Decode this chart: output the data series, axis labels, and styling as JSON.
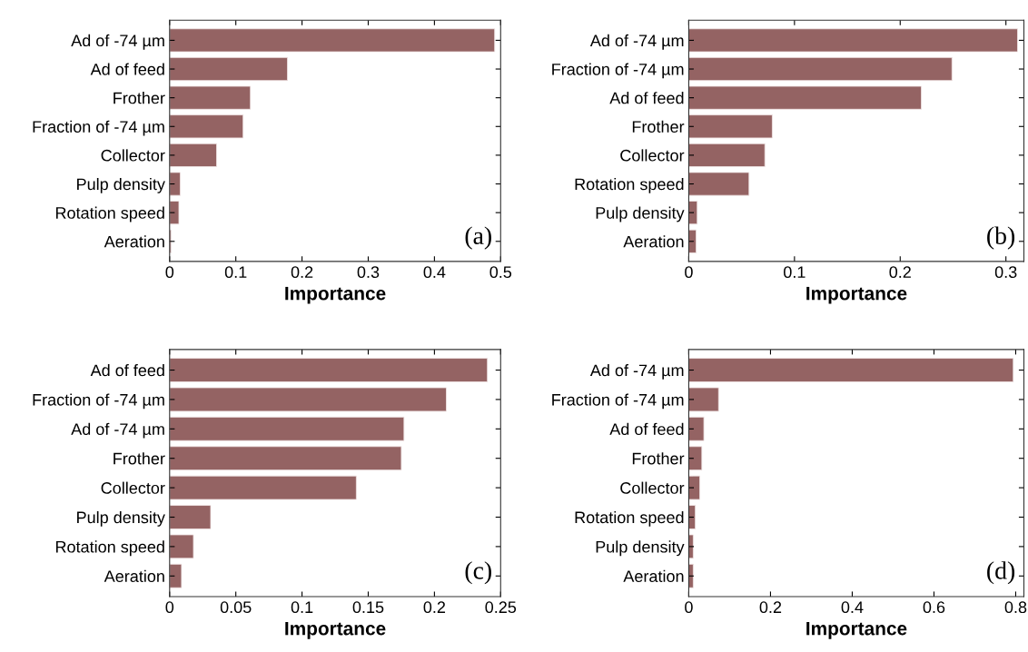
{
  "chart_data": [
    {
      "type": "bar",
      "orientation": "horizontal",
      "xlabel": "Importance",
      "annotations": [
        "(a)"
      ],
      "color": "#946363",
      "categories": [
        "Ad of -74 µm",
        "Ad of feed",
        "Frother",
        "Fraction of -74 µm",
        "Collector",
        "Pulp density",
        "Rotation speed",
        "Aeration"
      ],
      "values": [
        0.491,
        0.178,
        0.122,
        0.111,
        0.071,
        0.016,
        0.014,
        0.002
      ],
      "xlim": [
        0,
        0.5
      ],
      "xticks": [
        0,
        0.1,
        0.2,
        0.3,
        0.4,
        0.5
      ],
      "grid": false,
      "legend": false
    },
    {
      "type": "bar",
      "orientation": "horizontal",
      "xlabel": "Importance",
      "annotations": [
        "(b)"
      ],
      "color": "#946363",
      "categories": [
        "Ad of -74 µm",
        "Fraction of -74 µm",
        "Ad of feed",
        "Frother",
        "Collector",
        "Rotation speed",
        "Pulp density",
        "Aeration"
      ],
      "values": [
        0.311,
        0.249,
        0.22,
        0.079,
        0.072,
        0.057,
        0.008,
        0.007
      ],
      "xlim": [
        0,
        0.317
      ],
      "xticks": [
        0,
        0.1,
        0.2,
        0.3
      ],
      "grid": false,
      "legend": false
    },
    {
      "type": "bar",
      "orientation": "horizontal",
      "xlabel": "Importance",
      "annotations": [
        "(c)"
      ],
      "color": "#946363",
      "categories": [
        "Ad of feed",
        "Fraction of -74 µm",
        "Ad of -74 µm",
        "Frother",
        "Collector",
        "Pulp density",
        "Rotation speed",
        "Aeration"
      ],
      "values": [
        0.24,
        0.209,
        0.177,
        0.175,
        0.141,
        0.031,
        0.018,
        0.009
      ],
      "xlim": [
        0,
        0.25
      ],
      "xticks": [
        0,
        0.05,
        0.1,
        0.15,
        0.2,
        0.25
      ],
      "grid": false,
      "legend": false
    },
    {
      "type": "bar",
      "orientation": "horizontal",
      "xlabel": "Importance",
      "annotations": [
        "(d)"
      ],
      "color": "#946363",
      "categories": [
        "Ad of -74 µm",
        "Fraction of -74 µm",
        "Ad of feed",
        "Frother",
        "Collector",
        "Rotation speed",
        "Pulp density",
        "Aeration"
      ],
      "values": [
        0.794,
        0.073,
        0.037,
        0.032,
        0.027,
        0.016,
        0.011,
        0.011
      ],
      "xlim": [
        0,
        0.82
      ],
      "xticks": [
        0,
        0.2,
        0.4,
        0.6,
        0.8
      ],
      "grid": false,
      "legend": false
    }
  ]
}
